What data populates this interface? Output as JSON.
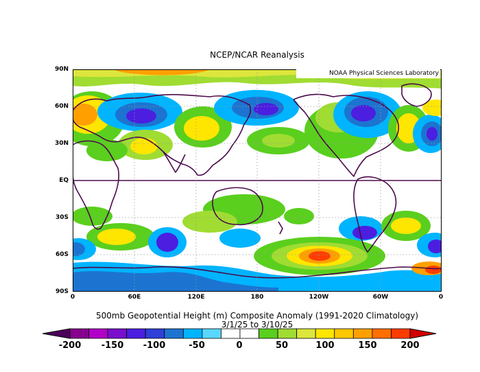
{
  "title": "NCEP/NCAR Reanalysis",
  "credit": "NOAA Physical Sciences Laboratory",
  "subtitle_line1": "500mb Geopotential Height (m) Composite Anomaly (1991-2020 Climatology)",
  "subtitle_line2": "3/1/25   to 3/10/25",
  "lat_labels": [
    "90N",
    "60N",
    "30N",
    "EQ",
    "30S",
    "60S",
    "90S"
  ],
  "lon_labels": [
    "0",
    "60E",
    "120E",
    "180",
    "120W",
    "60W",
    "0"
  ],
  "colorbar": {
    "labels": [
      "-200",
      "-150",
      "-100",
      "-50",
      "0",
      "50",
      "100",
      "150",
      "200"
    ],
    "colors": [
      "#4c005a",
      "#86008d",
      "#b200c8",
      "#7a0ecc",
      "#4b1ee0",
      "#2e40d8",
      "#1c74d0",
      "#00b4ff",
      "#5ad7ff",
      "#ffffff",
      "#ffffff",
      "#5acf1e",
      "#a0dc32",
      "#dce63c",
      "#ffe600",
      "#ffc800",
      "#ffa000",
      "#ff6e00",
      "#ff3c00",
      "#d20000"
    ]
  },
  "map_colors": {
    "white": "#ffffff",
    "light_blue": "#00b4ff",
    "blue": "#1c74d0",
    "dark_blue": "#4b1ee0",
    "purple": "#7a0ecc",
    "green": "#5acf1e",
    "yellow_green": "#a0dc32",
    "yellow": "#ffe600",
    "orange": "#ffa000",
    "red": "#ff3c00",
    "coast": "#4a0a4a"
  }
}
